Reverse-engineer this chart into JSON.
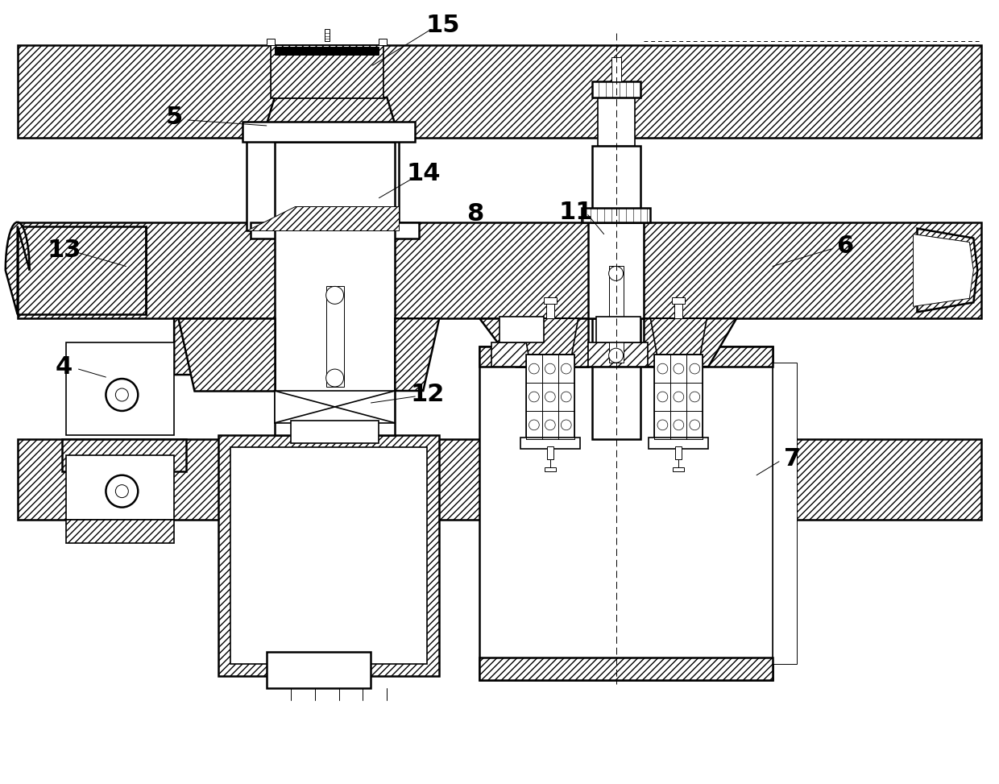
{
  "background_color": "#ffffff",
  "line_color": "#000000",
  "figsize": [
    12.4,
    9.73
  ],
  "dpi": 100,
  "lw_main": 1.8,
  "lw_med": 1.2,
  "lw_thin": 0.7,
  "label_fontsize": 22
}
